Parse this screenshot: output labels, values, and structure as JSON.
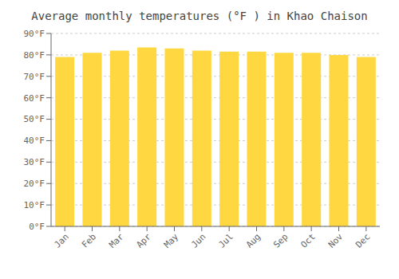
{
  "chart_data": {
    "type": "bar",
    "title": "Average monthly temperatures (°F ) in Khao Chaison",
    "categories": [
      "Jan",
      "Feb",
      "Mar",
      "Apr",
      "May",
      "Jun",
      "Jul",
      "Aug",
      "Sep",
      "Oct",
      "Nov",
      "Dec"
    ],
    "values": [
      79,
      81,
      82,
      83.5,
      83,
      82,
      81.5,
      81.5,
      81,
      81,
      80,
      79
    ],
    "color": "#FFD740",
    "ylim": [
      0,
      90
    ],
    "yticks": [
      {
        "value": 0,
        "label": "0°F"
      },
      {
        "value": 10,
        "label": "10°F"
      },
      {
        "value": 20,
        "label": "20°F"
      },
      {
        "value": 30,
        "label": "30°F"
      },
      {
        "value": 40,
        "label": "40°F"
      },
      {
        "value": 50,
        "label": "50°F"
      },
      {
        "value": 60,
        "label": "60°F"
      },
      {
        "value": 70,
        "label": "70°F"
      },
      {
        "value": 80,
        "label": "80°F"
      },
      {
        "value": 90,
        "label": "90°F"
      }
    ],
    "grid": true
  }
}
